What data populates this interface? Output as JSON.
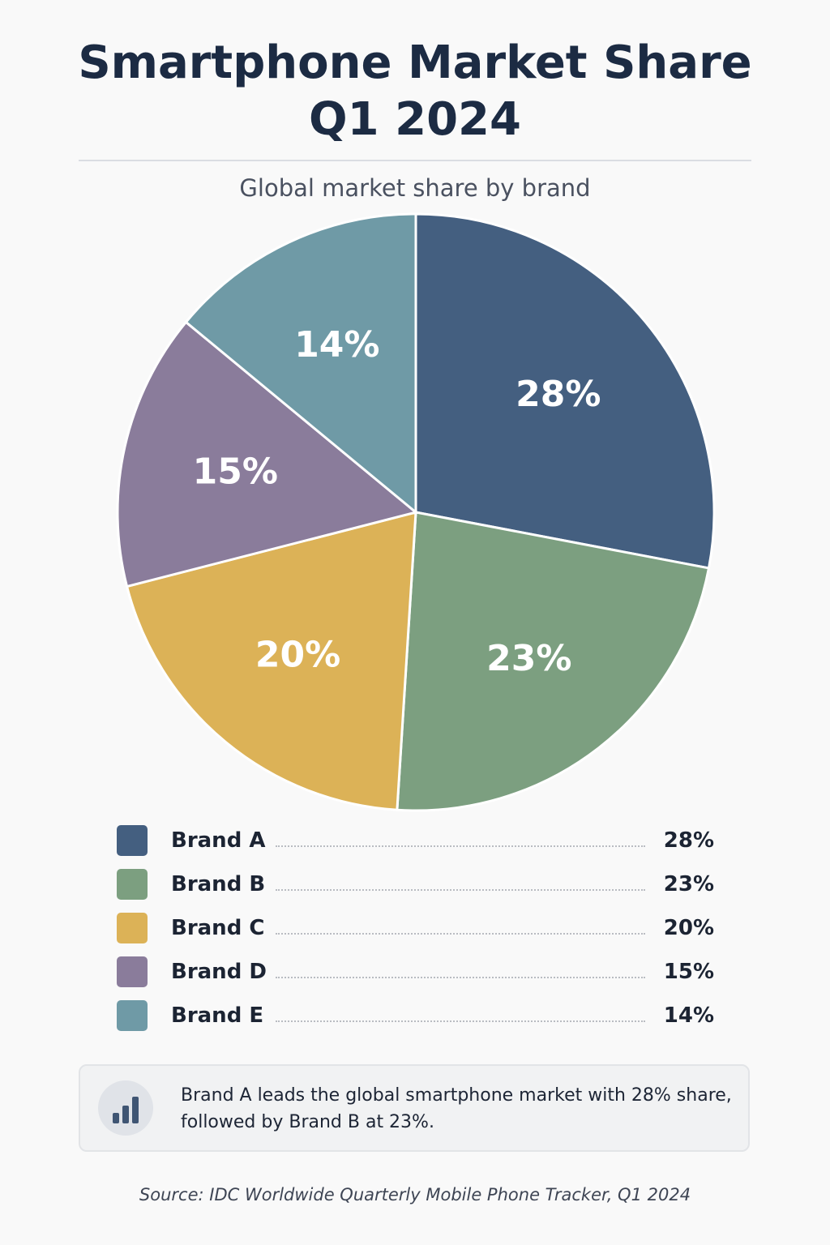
{
  "title_line1": "Smartphone Market Share",
  "title_line2": "Q1 2024",
  "subtitle": "Global market share by brand",
  "chart_data": {
    "type": "pie",
    "title": "Smartphone Market Share Q1 2024",
    "subtitle": "Global market share by brand",
    "categories": [
      "Brand A",
      "Brand B",
      "Brand C",
      "Brand D",
      "Brand E"
    ],
    "values": [
      28,
      23,
      20,
      15,
      14
    ],
    "labels": [
      "28%",
      "23%",
      "20%",
      "15%",
      "14%"
    ],
    "colors": [
      "#445f80",
      "#7c9f80",
      "#dcb257",
      "#8a7c9b",
      "#6f9aa6"
    ],
    "legend_position": "bottom"
  },
  "legend": [
    {
      "name": "Brand A",
      "value": "28%"
    },
    {
      "name": "Brand B",
      "value": "23%"
    },
    {
      "name": "Brand C",
      "value": "20%"
    },
    {
      "name": "Brand D",
      "value": "15%"
    },
    {
      "name": "Brand E",
      "value": "14%"
    }
  ],
  "callout": {
    "icon": "bar-chart-icon",
    "text_line1": "Brand A leads the global smartphone market with 28% share,",
    "text_line2": "followed by Brand B at 23%."
  },
  "source": "Source: IDC Worldwide Quarterly Mobile Phone Tracker, Q1 2024"
}
